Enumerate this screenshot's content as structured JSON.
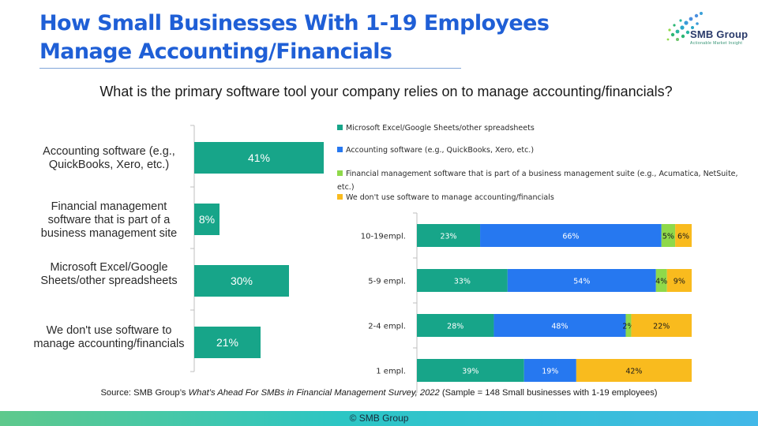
{
  "header": {
    "title": "How Small Businesses With 1-19 Employees Manage Accounting/Financials",
    "logo_name": "SMB Group",
    "logo_tagline": "Actionable Market Insight",
    "logo_icon": "dot-swirl-logo-icon"
  },
  "question": "What is the primary software tool your company relies on to manage accounting/financials?",
  "chart_data": [
    {
      "type": "bar",
      "orientation": "horizontal",
      "categories": [
        "Accounting software (e.g., QuickBooks, Xero, etc.)",
        "Financial management software that is part of a business management site",
        "Microsoft Excel/Google Sheets/other spreadsheets",
        "We don't use software to manage accounting/financials"
      ],
      "values": [
        41,
        8,
        30,
        21
      ],
      "value_labels": [
        "41%",
        "8%",
        "30%",
        "21%"
      ],
      "xlim": [
        0,
        41
      ],
      "color": "#17a589"
    },
    {
      "type": "bar",
      "orientation": "horizontal",
      "stacked": true,
      "normalized": true,
      "categories": [
        "10-19empl.",
        "5-9 empl.",
        "2-4 empl.",
        "1 empl."
      ],
      "series": [
        {
          "name": "Microsoft Excel/Google Sheets/other spreadsheets",
          "color": "#17a589",
          "values": [
            23,
            33,
            28,
            39
          ],
          "labels": [
            "23%",
            "33%",
            "28%",
            "39%"
          ]
        },
        {
          "name": "Accounting software (e.g., QuickBooks, Xero, etc.)",
          "color": "#2678f0",
          "values": [
            66,
            54,
            48,
            19
          ],
          "labels": [
            "66%",
            "54%",
            "48%",
            "19%"
          ]
        },
        {
          "name": "Financial management software that is part of a business management suite (e.g., Acumatica, NetSuite, etc.)",
          "color": "#8fd94a",
          "values": [
            5,
            4,
            2,
            0
          ],
          "labels": [
            "5%",
            "4%",
            "2%",
            ""
          ]
        },
        {
          "name": "We don't use software to manage accounting/financials",
          "color": "#f9bb1e",
          "values": [
            6,
            9,
            22,
            42
          ],
          "labels": [
            "6%",
            "9%",
            "22%",
            "42%"
          ]
        }
      ],
      "legend_position": "top"
    }
  ],
  "source": {
    "prefix": "Source: SMB Group’s ",
    "survey": "What’s Ahead For SMBs in Financial Management Survey, 2022",
    "suffix": " (Sample = 148 Small businesses with 1-19 employees)"
  },
  "footer": "© SMB Group"
}
